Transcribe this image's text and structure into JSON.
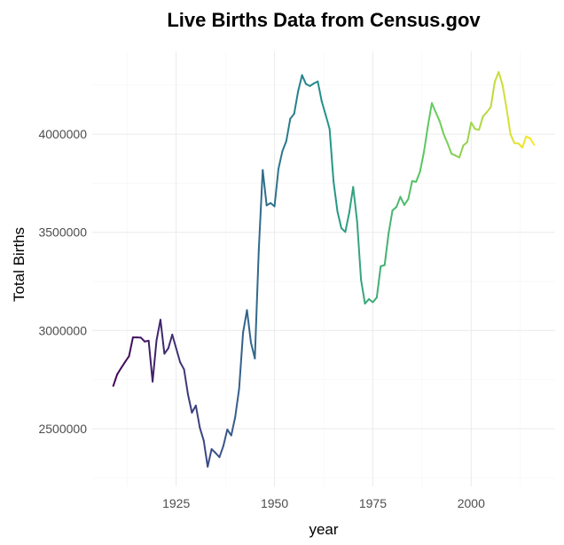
{
  "chart_data": {
    "type": "line",
    "title": "Live Births Data from Census.gov",
    "xlabel": "year",
    "ylabel": "Total Births",
    "xlim": [
      1909,
      2016
    ],
    "ylim": [
      2307000,
      4320000
    ],
    "x_ticks": [
      1925,
      1950,
      1975,
      2000
    ],
    "y_ticks": [
      2500000,
      3000000,
      3500000,
      4000000
    ],
    "x_tick_labels": [
      "1925",
      "1950",
      "1975",
      "2000"
    ],
    "y_tick_labels": [
      "2500000",
      "3000000",
      "3500000",
      "4000000"
    ],
    "grid": true,
    "legend": "none",
    "color_scale": "viridis",
    "colors": [
      "#440154",
      "#3b528b",
      "#21918c",
      "#5ec962",
      "#fde725"
    ],
    "series": [
      {
        "x": [
          1909,
          1910,
          1911,
          1912,
          1913,
          1914,
          1915,
          1916,
          1917,
          1918,
          1919,
          1920,
          1921,
          1922,
          1923,
          1924,
          1925,
          1926,
          1927,
          1928,
          1929,
          1930,
          1931,
          1932,
          1933,
          1934,
          1935,
          1936,
          1937,
          1938,
          1939,
          1940,
          1941,
          1942,
          1943,
          1944,
          1945,
          1946,
          1947,
          1948,
          1949,
          1950,
          1951,
          1952,
          1953,
          1954,
          1955,
          1956,
          1957,
          1958,
          1959,
          1960,
          1961,
          1962,
          1963,
          1964,
          1965,
          1966,
          1967,
          1968,
          1969,
          1970,
          1971,
          1972,
          1973,
          1974,
          1975,
          1976,
          1977,
          1978,
          1979,
          1980,
          1981,
          1982,
          1983,
          1984,
          1985,
          1986,
          1987,
          1988,
          1989,
          1990,
          1991,
          1992,
          1993,
          1994,
          1995,
          1996,
          1997,
          1998,
          1999,
          2000,
          2001,
          2002,
          2003,
          2004,
          2005,
          2006,
          2007,
          2008,
          2009,
          2010,
          2011,
          2012,
          2013,
          2014,
          2015,
          2016
        ],
        "values": [
          2718000,
          2777000,
          2809000,
          2840000,
          2869000,
          2965000,
          2965000,
          2964000,
          2944000,
          2948000,
          2740000,
          2950000,
          3055000,
          2882000,
          2910000,
          2979000,
          2909000,
          2839000,
          2802000,
          2674000,
          2582000,
          2618000,
          2506000,
          2440000,
          2307000,
          2396000,
          2377000,
          2355000,
          2413000,
          2496000,
          2466000,
          2559000,
          2703000,
          2989000,
          3104000,
          2939000,
          2858000,
          3411000,
          3817000,
          3637000,
          3649000,
          3632000,
          3823000,
          3913000,
          3965000,
          4078000,
          4104000,
          4218000,
          4300000,
          4255000,
          4245000,
          4258000,
          4268000,
          4167000,
          4098000,
          4027000,
          3760000,
          3606000,
          3521000,
          3502000,
          3600000,
          3731000,
          3556000,
          3258000,
          3137000,
          3160000,
          3144000,
          3168000,
          3327000,
          3333000,
          3494000,
          3612000,
          3629000,
          3681000,
          3639000,
          3669000,
          3761000,
          3757000,
          3809000,
          3910000,
          4041000,
          4158000,
          4111000,
          4065000,
          4000000,
          3953000,
          3900000,
          3891000,
          3881000,
          3942000,
          3959000,
          4059000,
          4026000,
          4022000,
          4090000,
          4112000,
          4138000,
          4266000,
          4316000,
          4248000,
          4131000,
          3999000,
          3954000,
          3953000,
          3932000,
          3988000,
          3978000,
          3946000
        ]
      }
    ]
  }
}
